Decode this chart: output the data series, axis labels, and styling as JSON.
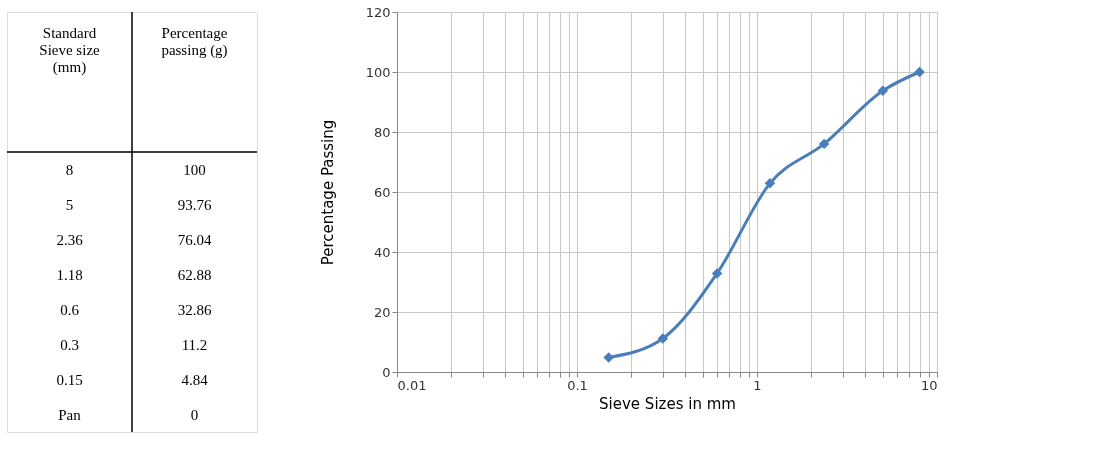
{
  "chart_data": [
    {
      "type": "other",
      "annotations": [
        "Standard\nSieve size\n(mm)",
        "Percentage\npassing (g)",
        "8",
        "100",
        "5",
        "93.76",
        "2.36",
        "76.04",
        "1.18",
        "62.88",
        "0.6",
        "32.86",
        "0.3",
        "11.2",
        "0.15",
        "4.84",
        "Pan",
        "0"
      ]
    },
    {
      "type": "line",
      "xlabel": "Sieve Sizes in mm",
      "ylabel": "Percentage   Passing",
      "log": "x",
      "grid": true,
      "marker": "diamond",
      "line_style": "solid",
      "x": [
        0.15,
        0.3,
        0.6,
        1.18,
        2.36,
        5,
        8
      ],
      "series": [
        {
          "color": "#4a7ebb",
          "values": [
            4.84,
            11.2,
            32.86,
            62.88,
            76.04,
            93.76,
            100
          ]
        }
      ],
      "xlim": [
        0.01,
        10
      ],
      "xticks": [
        0.01,
        {
          "value": 0.02,
          "label": null
        },
        {
          "value": 0.03,
          "label": null
        },
        {
          "value": 0.04,
          "label": null
        },
        {
          "value": 0.05,
          "label": null
        },
        {
          "value": 0.06,
          "label": null
        },
        {
          "value": 0.07,
          "label": null
        },
        {
          "value": 0.08,
          "label": null
        },
        {
          "value": 0.09,
          "label": null
        },
        0.1,
        {
          "value": 0.2,
          "label": null
        },
        {
          "value": 0.3,
          "label": null
        },
        {
          "value": 0.4,
          "label": null
        },
        {
          "value": 0.5,
          "label": null
        },
        {
          "value": 0.6,
          "label": null
        },
        {
          "value": 0.7,
          "label": null
        },
        {
          "value": 0.8,
          "label": null
        },
        {
          "value": 0.9,
          "label": null
        },
        1,
        {
          "value": 2,
          "label": null
        },
        {
          "value": 3,
          "label": null
        },
        {
          "value": 4,
          "label": null
        },
        {
          "value": 5,
          "label": null
        },
        {
          "value": 6,
          "label": null
        },
        {
          "value": 7,
          "label": null
        },
        {
          "value": 8,
          "label": null
        },
        {
          "value": 9,
          "label": null
        },
        10
      ],
      "ylim": [
        0,
        120
      ],
      "yticks": [
        0,
        20,
        40,
        60,
        80,
        100,
        120
      ]
    }
  ]
}
